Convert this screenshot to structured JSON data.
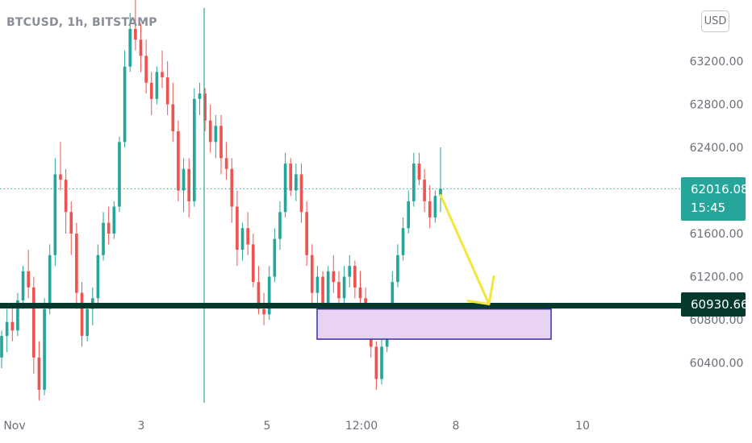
{
  "header": {
    "symbol": "BTCUSD, 1h, BITSTAMP"
  },
  "currency_button": "USD",
  "price_label": {
    "price": "62016.08",
    "countdown": "15:45"
  },
  "level_label": "60930.66",
  "colors": {
    "up": "#26a69a",
    "down": "#ef5350",
    "level_line": "#06392e",
    "zone_fill": "#e9d3f2",
    "zone_border": "#3b2fa0",
    "arrow": "#f5e63b"
  },
  "chart_data": {
    "type": "candlestick",
    "symbol": "BTCUSD",
    "interval": "1h",
    "exchange": "BITSTAMP",
    "ylim": [
      60000,
      63800
    ],
    "y_ticks": [
      "63200.00",
      "62800.00",
      "62400.00",
      "61600.00",
      "61200.00",
      "60800.00",
      "60400.00"
    ],
    "x_ticks": [
      "Nov",
      "3",
      "5",
      "12:00",
      "8",
      "10"
    ],
    "last_price": 62016.08,
    "level_price": 60930.66,
    "zone": {
      "low": 60620,
      "high": 60900
    },
    "projection": {
      "from": 62016.08,
      "to": 60930.66
    },
    "candles": [
      [
        60450,
        60700,
        60350,
        60650
      ],
      [
        60650,
        60900,
        60500,
        60780
      ],
      [
        60780,
        60950,
        60600,
        60700
      ],
      [
        60700,
        61050,
        60650,
        60980
      ],
      [
        60980,
        61300,
        60900,
        61250
      ],
      [
        61250,
        61450,
        61000,
        61100
      ],
      [
        61100,
        61200,
        60300,
        60450
      ],
      [
        60450,
        60600,
        60050,
        60150
      ],
      [
        60150,
        61000,
        60100,
        60900
      ],
      [
        60900,
        61500,
        60850,
        61400
      ],
      [
        61400,
        62300,
        61300,
        62150
      ],
      [
        62150,
        62450,
        62000,
        62100
      ],
      [
        62100,
        62200,
        61600,
        61800
      ],
      [
        61800,
        61900,
        61400,
        61600
      ],
      [
        61600,
        61700,
        60900,
        61050
      ],
      [
        61050,
        61150,
        60550,
        60650
      ],
      [
        60650,
        60950,
        60600,
        60900
      ],
      [
        60900,
        61100,
        60750,
        61000
      ],
      [
        61000,
        61500,
        60950,
        61400
      ],
      [
        61400,
        61800,
        61350,
        61700
      ],
      [
        61700,
        61850,
        61500,
        61600
      ],
      [
        61600,
        61900,
        61550,
        61850
      ],
      [
        61850,
        62500,
        61800,
        62450
      ],
      [
        62450,
        63300,
        62400,
        63150
      ],
      [
        63150,
        63650,
        63100,
        63500
      ],
      [
        63500,
        63800,
        63300,
        63400
      ],
      [
        63400,
        63550,
        63100,
        63250
      ],
      [
        63250,
        63400,
        62900,
        63000
      ],
      [
        63000,
        63100,
        62700,
        62850
      ],
      [
        62850,
        63150,
        62800,
        63100
      ],
      [
        63100,
        63300,
        62950,
        63050
      ],
      [
        63050,
        63200,
        62700,
        62800
      ],
      [
        62800,
        63000,
        62450,
        62550
      ],
      [
        62550,
        62650,
        61900,
        62000
      ],
      [
        62000,
        62300,
        61800,
        62200
      ],
      [
        62200,
        62300,
        61750,
        61900
      ],
      [
        61900,
        62950,
        61850,
        62850
      ],
      [
        62850,
        63000,
        62700,
        62900
      ],
      [
        62900,
        62950,
        62550,
        62650
      ],
      [
        62650,
        62800,
        62350,
        62450
      ],
      [
        62450,
        62700,
        62300,
        62600
      ],
      [
        62600,
        62700,
        62150,
        62300
      ],
      [
        62300,
        62450,
        62100,
        62200
      ],
      [
        62200,
        62300,
        61700,
        61850
      ],
      [
        61850,
        62000,
        61300,
        61450
      ],
      [
        61450,
        61700,
        61350,
        61650
      ],
      [
        61650,
        61800,
        61400,
        61500
      ],
      [
        61500,
        61600,
        61100,
        61150
      ],
      [
        61150,
        61300,
        60850,
        60900
      ],
      [
        60900,
        61050,
        60750,
        60850
      ],
      [
        60850,
        61300,
        60800,
        61200
      ],
      [
        61200,
        61650,
        61150,
        61550
      ],
      [
        61550,
        61900,
        61450,
        61800
      ],
      [
        61800,
        62350,
        61750,
        62250
      ],
      [
        62250,
        62300,
        61950,
        62000
      ],
      [
        62000,
        62250,
        61900,
        62150
      ],
      [
        62150,
        62250,
        61700,
        61800
      ],
      [
        61800,
        61900,
        61300,
        61400
      ],
      [
        61400,
        61500,
        60950,
        61050
      ],
      [
        61050,
        61300,
        60900,
        61200
      ],
      [
        61200,
        61250,
        60850,
        60950
      ],
      [
        60950,
        61300,
        60900,
        61250
      ],
      [
        61250,
        61400,
        61050,
        61150
      ],
      [
        61150,
        61250,
        60900,
        61000
      ],
      [
        61000,
        61300,
        60950,
        61200
      ],
      [
        61200,
        61400,
        61100,
        61300
      ],
      [
        61300,
        61350,
        61000,
        61100
      ],
      [
        61100,
        61250,
        60900,
        61000
      ],
      [
        61000,
        61100,
        60700,
        60800
      ],
      [
        60800,
        60900,
        60450,
        60550
      ],
      [
        60550,
        60600,
        60150,
        60250
      ],
      [
        60250,
        60650,
        60200,
        60550
      ],
      [
        60550,
        60850,
        60500,
        60800
      ],
      [
        60800,
        61250,
        60750,
        61150
      ],
      [
        61150,
        61500,
        61100,
        61400
      ],
      [
        61400,
        61750,
        61350,
        61650
      ],
      [
        61650,
        62000,
        61600,
        61900
      ],
      [
        61900,
        62350,
        61850,
        62250
      ],
      [
        62250,
        62350,
        62050,
        62100
      ],
      [
        62100,
        62200,
        61800,
        61900
      ],
      [
        61900,
        62050,
        61650,
        61750
      ],
      [
        61750,
        62000,
        61700,
        61950
      ],
      [
        61950,
        62400,
        61800,
        62016.08
      ]
    ]
  }
}
